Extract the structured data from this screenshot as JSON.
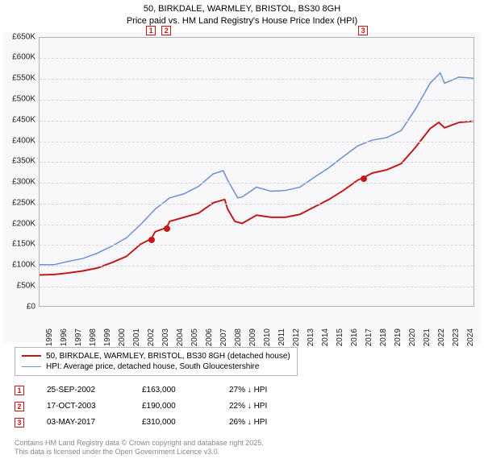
{
  "title_line1": "50, BIRKDALE, WARMLEY, BRISTOL, BS30 8GH",
  "title_line2": "Price paid vs. HM Land Registry's House Price Index (HPI)",
  "chart": {
    "type": "line",
    "background_color": "#f8f8fb",
    "grid_color": "#d8d8dc",
    "axis_color": "#b5b5b5",
    "ylim": [
      0,
      650000
    ],
    "ytick_step": 50000,
    "yticks": [
      "£0",
      "£50K",
      "£100K",
      "£150K",
      "£200K",
      "£250K",
      "£300K",
      "£350K",
      "£400K",
      "£450K",
      "£500K",
      "£550K",
      "£600K",
      "£650K"
    ],
    "xlim": [
      1995,
      2025
    ],
    "xticks": [
      "1995",
      "1996",
      "1997",
      "1998",
      "1999",
      "2000",
      "2001",
      "2002",
      "2003",
      "2004",
      "2005",
      "2006",
      "2007",
      "2008",
      "2009",
      "2010",
      "2011",
      "2012",
      "2013",
      "2014",
      "2015",
      "2016",
      "2017",
      "2018",
      "2019",
      "2020",
      "2021",
      "2022",
      "2023",
      "2024"
    ],
    "series": [
      {
        "label": "50, BIRKDALE, WARMLEY, BRISTOL, BS30 8GH (detached house)",
        "color": "#c21a1a",
        "line_width": 2,
        "xy": [
          [
            1995,
            75000
          ],
          [
            1996,
            76000
          ],
          [
            1997,
            80000
          ],
          [
            1998,
            85000
          ],
          [
            1999,
            92000
          ],
          [
            2000,
            105000
          ],
          [
            2001,
            120000
          ],
          [
            2002,
            150000
          ],
          [
            2002.73,
            163000
          ],
          [
            2003,
            180000
          ],
          [
            2003.79,
            190000
          ],
          [
            2004,
            205000
          ],
          [
            2005,
            215000
          ],
          [
            2006,
            225000
          ],
          [
            2007,
            250000
          ],
          [
            2007.8,
            258000
          ],
          [
            2008,
            235000
          ],
          [
            2008.5,
            205000
          ],
          [
            2009,
            200000
          ],
          [
            2010,
            220000
          ],
          [
            2011,
            215000
          ],
          [
            2012,
            215000
          ],
          [
            2013,
            222000
          ],
          [
            2014,
            240000
          ],
          [
            2015,
            258000
          ],
          [
            2016,
            280000
          ],
          [
            2017,
            305000
          ],
          [
            2017.34,
            310000
          ],
          [
            2018,
            322000
          ],
          [
            2019,
            330000
          ],
          [
            2020,
            345000
          ],
          [
            2021,
            385000
          ],
          [
            2022,
            430000
          ],
          [
            2022.6,
            445000
          ],
          [
            2023,
            432000
          ],
          [
            2024,
            445000
          ],
          [
            2025,
            448000
          ]
        ]
      },
      {
        "label": "HPI: Average price, detached house, South Gloucestershire",
        "color": "#6b8fd4",
        "line_width": 1.5,
        "xy": [
          [
            1995,
            100000
          ],
          [
            1996,
            100000
          ],
          [
            1997,
            108000
          ],
          [
            1998,
            115000
          ],
          [
            1999,
            128000
          ],
          [
            2000,
            145000
          ],
          [
            2001,
            165000
          ],
          [
            2002,
            198000
          ],
          [
            2003,
            235000
          ],
          [
            2004,
            262000
          ],
          [
            2005,
            272000
          ],
          [
            2006,
            290000
          ],
          [
            2007,
            320000
          ],
          [
            2007.7,
            328000
          ],
          [
            2008,
            305000
          ],
          [
            2008.7,
            262000
          ],
          [
            2009,
            264000
          ],
          [
            2010,
            288000
          ],
          [
            2011,
            278000
          ],
          [
            2012,
            280000
          ],
          [
            2013,
            288000
          ],
          [
            2014,
            312000
          ],
          [
            2015,
            335000
          ],
          [
            2016,
            362000
          ],
          [
            2017,
            388000
          ],
          [
            2018,
            402000
          ],
          [
            2019,
            408000
          ],
          [
            2020,
            425000
          ],
          [
            2021,
            478000
          ],
          [
            2022,
            540000
          ],
          [
            2022.7,
            565000
          ],
          [
            2023,
            540000
          ],
          [
            2024,
            555000
          ],
          [
            2025,
            552000
          ]
        ]
      }
    ],
    "markers": [
      {
        "n": "1",
        "x": 2002.73,
        "y": 163000,
        "date": "25-SEP-2002",
        "price": "£163,000",
        "delta": "27% ↓ HPI"
      },
      {
        "n": "2",
        "x": 2003.79,
        "y": 190000,
        "date": "17-OCT-2003",
        "price": "£190,000",
        "delta": "22% ↓ HPI"
      },
      {
        "n": "3",
        "x": 2017.34,
        "y": 310000,
        "date": "03-MAY-2017",
        "price": "£310,000",
        "delta": "26% ↓ HPI"
      }
    ],
    "marker_box_color": "#c21a1a",
    "marker_dot_color": "#c21a1a"
  },
  "footer_line1": "Contains HM Land Registry data © Crown copyright and database right 2025.",
  "footer_line2": "This data is licensed under the Open Government Licence v3.0."
}
